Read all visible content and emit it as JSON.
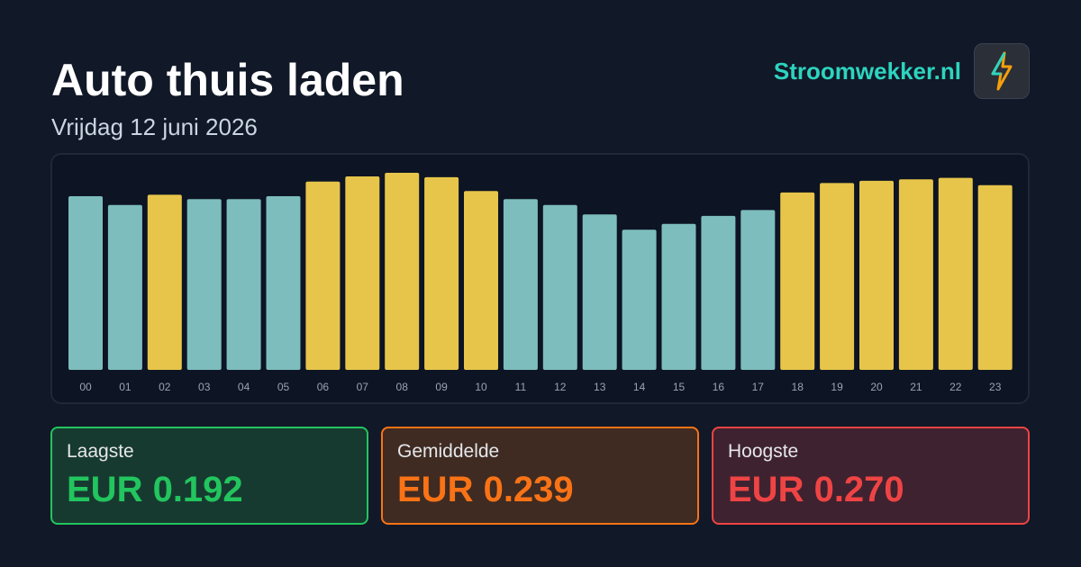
{
  "header": {
    "title": "Auto thuis laden",
    "subtitle": "Vrijdag 12 juni 2026",
    "brand": "Stroomwekker.nl"
  },
  "chart_data": {
    "type": "bar",
    "categories": [
      "00",
      "01",
      "02",
      "03",
      "04",
      "05",
      "06",
      "07",
      "08",
      "09",
      "10",
      "11",
      "12",
      "13",
      "14",
      "15",
      "16",
      "17",
      "18",
      "19",
      "20",
      "21",
      "22",
      "23"
    ],
    "values": [
      0.238,
      0.226,
      0.24,
      0.234,
      0.234,
      0.238,
      0.258,
      0.265,
      0.27,
      0.264,
      0.245,
      0.234,
      0.226,
      0.213,
      0.192,
      0.2,
      0.211,
      0.219,
      0.243,
      0.256,
      0.259,
      0.261,
      0.263,
      0.253
    ],
    "colors": [
      "#7dbdbd",
      "#7dbdbd",
      "#e6c54a",
      "#7dbdbd",
      "#7dbdbd",
      "#7dbdbd",
      "#e6c54a",
      "#e6c54a",
      "#e6c54a",
      "#e6c54a",
      "#e6c54a",
      "#7dbdbd",
      "#7dbdbd",
      "#7dbdbd",
      "#7dbdbd",
      "#7dbdbd",
      "#7dbdbd",
      "#7dbdbd",
      "#e6c54a",
      "#e6c54a",
      "#e6c54a",
      "#e6c54a",
      "#e6c54a",
      "#e6c54a"
    ]
  },
  "stats": [
    {
      "label": "Laagste",
      "value": "EUR 0.192"
    },
    {
      "label": "Gemiddelde",
      "value": "EUR 0.239"
    },
    {
      "label": "Hoogste",
      "value": "EUR 0.270"
    }
  ]
}
